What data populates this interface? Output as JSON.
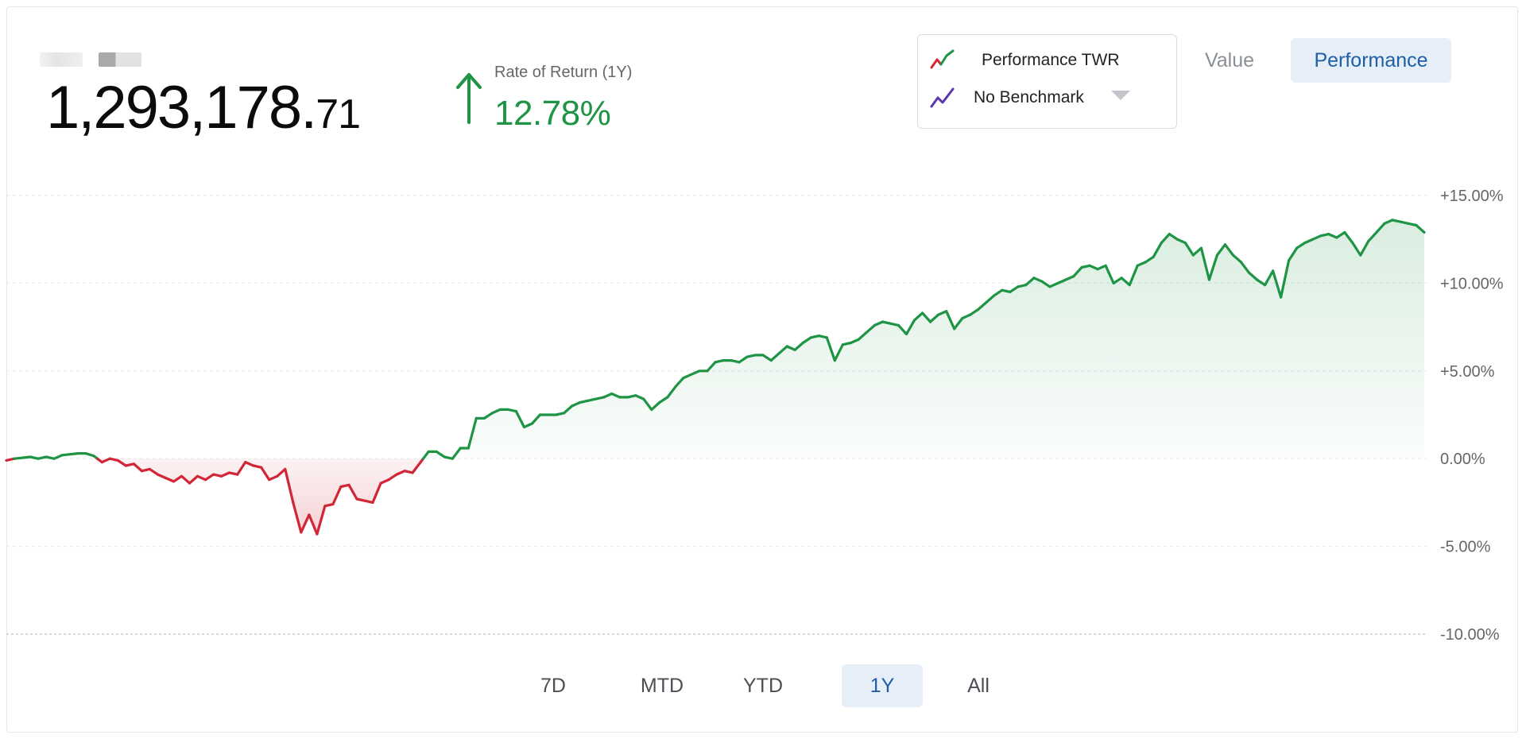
{
  "header": {
    "portfolio_value_main": "1,293,178.",
    "portfolio_value_cents": "71",
    "return_label": "Rate of Return (1Y)",
    "return_value": "12.78%",
    "return_direction": "up"
  },
  "benchmark_selector": {
    "series_label": "Performance TWR",
    "benchmark_label": "No Benchmark"
  },
  "view_tabs": {
    "value_label": "Value",
    "performance_label": "Performance",
    "active": "Performance"
  },
  "period_tabs": {
    "items": [
      "7D",
      "MTD",
      "YTD",
      "1Y",
      "All"
    ],
    "active": "1Y"
  },
  "colors": {
    "positive": "#1e9444",
    "negative": "#d22636",
    "benchmark": "#5a36b0",
    "accent": "#1f5fa8"
  },
  "icons": {
    "return_direction": "arrow-up-icon",
    "series": "line-chart-icon",
    "benchmark": "line-chart-icon",
    "dropdown": "caret-down-icon"
  },
  "chart_data": {
    "type": "area",
    "ylim": [
      -10,
      15
    ],
    "y_ticks": [
      15,
      10,
      5,
      0,
      -5,
      -10
    ],
    "y_tick_labels": [
      "+15.00%",
      "+10.00%",
      "+5.00%",
      "0.00%",
      "-5.00%",
      "-10.00%"
    ],
    "grid": true,
    "series": [
      {
        "name": "Performance TWR",
        "y": [
          -0.1,
          0.0,
          0.05,
          0.1,
          0.0,
          0.1,
          0.0,
          0.2,
          0.25,
          0.3,
          0.3,
          0.15,
          -0.2,
          0.0,
          -0.1,
          -0.4,
          -0.3,
          -0.7,
          -0.6,
          -0.9,
          -1.1,
          -1.3,
          -1.0,
          -1.4,
          -1.0,
          -1.2,
          -0.9,
          -1.0,
          -0.8,
          -0.9,
          -0.2,
          -0.4,
          -0.5,
          -1.2,
          -1.0,
          -0.6,
          -2.5,
          -4.2,
          -3.2,
          -4.3,
          -2.7,
          -2.6,
          -1.6,
          -1.5,
          -2.3,
          -2.4,
          -2.5,
          -1.4,
          -1.2,
          -0.9,
          -0.7,
          -0.8,
          -0.2,
          0.4,
          0.4,
          0.1,
          0.0,
          0.6,
          0.6,
          2.3,
          2.3,
          2.6,
          2.8,
          2.8,
          2.7,
          1.8,
          2.0,
          2.5,
          2.5,
          2.5,
          2.6,
          3.0,
          3.2,
          3.3,
          3.4,
          3.5,
          3.7,
          3.5,
          3.5,
          3.6,
          3.4,
          2.8,
          3.2,
          3.5,
          4.1,
          4.6,
          4.8,
          5.0,
          5.0,
          5.5,
          5.6,
          5.6,
          5.5,
          5.8,
          5.9,
          5.9,
          5.6,
          6.0,
          6.4,
          6.2,
          6.6,
          6.9,
          7.0,
          6.9,
          5.6,
          6.5,
          6.6,
          6.8,
          7.2,
          7.6,
          7.8,
          7.7,
          7.6,
          7.1,
          7.9,
          8.3,
          7.8,
          8.2,
          8.4,
          7.4,
          8.0,
          8.2,
          8.5,
          8.9,
          9.3,
          9.6,
          9.5,
          9.8,
          9.9,
          10.3,
          10.1,
          9.8,
          10.0,
          10.2,
          10.4,
          10.9,
          11.0,
          10.8,
          11.0,
          10.0,
          10.3,
          9.9,
          11.0,
          11.2,
          11.5,
          12.3,
          12.8,
          12.5,
          12.3,
          11.6,
          12.0,
          10.2,
          11.6,
          12.2,
          11.6,
          11.2,
          10.6,
          10.2,
          9.9,
          10.7,
          9.2,
          11.3,
          12.0,
          12.3,
          12.5,
          12.7,
          12.8,
          12.6,
          12.9,
          12.3,
          11.6,
          12.4,
          12.9,
          13.4,
          13.6,
          13.5,
          13.4,
          13.3,
          12.9
        ]
      }
    ]
  }
}
